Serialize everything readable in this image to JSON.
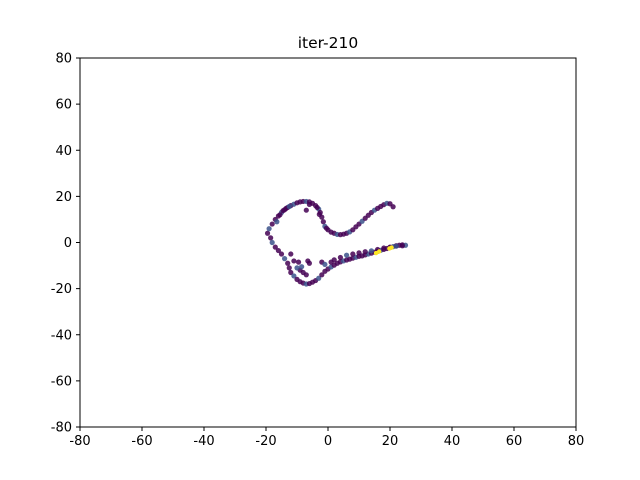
{
  "chart_data": {
    "type": "scatter",
    "title": "iter-210",
    "xlabel": "",
    "ylabel": "",
    "xlim": [
      -80,
      80
    ],
    "ylim": [
      -80,
      80
    ],
    "xticks": [
      -80,
      -60,
      -40,
      -20,
      0,
      20,
      40,
      60,
      80
    ],
    "yticks": [
      -80,
      -60,
      -40,
      -20,
      0,
      20,
      40,
      60,
      80
    ],
    "grid": false,
    "legend": "none",
    "colors": {
      "low": "#440154",
      "mid": "#3b528b",
      "high": "#fde725"
    },
    "series": [
      {
        "points": [
          [
            -19.5,
            4.0
          ],
          [
            -19.0,
            6.0
          ],
          [
            -18.0,
            8.0
          ],
          [
            -17.0,
            10.0
          ],
          [
            -16.0,
            11.5
          ],
          [
            -15.0,
            13.0
          ],
          [
            -14.0,
            14.2
          ],
          [
            -13.0,
            15.2
          ],
          [
            -12.0,
            16.0
          ],
          [
            -11.0,
            16.6
          ],
          [
            -10.0,
            17.2
          ],
          [
            -9.0,
            17.6
          ],
          [
            -8.0,
            17.8
          ],
          [
            -7.0,
            17.8
          ],
          [
            -6.0,
            17.6
          ],
          [
            -5.0,
            17.0
          ],
          [
            -4.0,
            16.0
          ],
          [
            -3.0,
            14.5
          ],
          [
            -2.5,
            13.0
          ],
          [
            -2.0,
            11.0
          ],
          [
            -1.5,
            9.0
          ],
          [
            -1.0,
            7.0
          ],
          [
            0.0,
            5.5
          ],
          [
            1.0,
            4.5
          ],
          [
            2.0,
            4.0
          ],
          [
            3.0,
            3.5
          ],
          [
            4.0,
            3.4
          ],
          [
            5.0,
            3.6
          ],
          [
            6.0,
            4.0
          ],
          [
            7.0,
            4.6
          ],
          [
            8.0,
            5.5
          ],
          [
            9.0,
            6.8
          ],
          [
            10.0,
            8.0
          ],
          [
            11.0,
            9.2
          ],
          [
            12.0,
            10.5
          ],
          [
            13.0,
            11.8
          ],
          [
            14.0,
            13.0
          ],
          [
            15.0,
            14.0
          ],
          [
            16.0,
            14.8
          ],
          [
            17.0,
            15.6
          ],
          [
            18.0,
            16.4
          ],
          [
            19.0,
            17.0
          ],
          [
            20.0,
            16.8
          ],
          [
            21.0,
            15.5
          ],
          [
            -18.5,
            2.0
          ],
          [
            -18.0,
            0.0
          ],
          [
            -17.0,
            -2.0
          ],
          [
            -16.0,
            -3.5
          ],
          [
            -15.0,
            -5.0
          ],
          [
            -14.0,
            -7.0
          ],
          [
            -13.0,
            -9.0
          ],
          [
            -12.5,
            -11.0
          ],
          [
            -12.0,
            -13.0
          ],
          [
            -11.0,
            -14.5
          ],
          [
            -10.0,
            -16.0
          ],
          [
            -9.0,
            -17.0
          ],
          [
            -8.0,
            -17.6
          ],
          [
            -7.0,
            -18.0
          ],
          [
            -6.0,
            -17.8
          ],
          [
            -5.0,
            -17.2
          ],
          [
            -4.0,
            -16.5
          ],
          [
            -3.0,
            -15.5
          ],
          [
            -2.0,
            -14.0
          ],
          [
            -1.0,
            -12.5
          ],
          [
            0.0,
            -11.5
          ],
          [
            1.0,
            -10.6
          ],
          [
            2.0,
            -9.8
          ],
          [
            3.0,
            -9.0
          ],
          [
            4.0,
            -8.4
          ],
          [
            5.0,
            -8.0
          ],
          [
            6.0,
            -7.6
          ],
          [
            7.0,
            -7.2
          ],
          [
            8.0,
            -6.8
          ],
          [
            9.0,
            -6.4
          ],
          [
            10.0,
            -6.0
          ],
          [
            11.0,
            -5.8
          ],
          [
            12.0,
            -5.4
          ],
          [
            13.0,
            -5.0
          ],
          [
            14.0,
            -4.6
          ],
          [
            15.0,
            -4.2
          ],
          [
            16.0,
            -3.8
          ],
          [
            17.0,
            -3.4
          ],
          [
            18.0,
            -3.0
          ],
          [
            19.0,
            -2.6
          ],
          [
            20.0,
            -2.2
          ],
          [
            21.0,
            -1.8
          ],
          [
            22.0,
            -1.4
          ],
          [
            23.0,
            -1.2
          ],
          [
            24.0,
            -1.0
          ],
          [
            25.0,
            -1.2
          ],
          [
            -9.0,
            -12.0
          ],
          [
            -8.0,
            -13.0
          ],
          [
            -7.0,
            -14.0
          ],
          [
            -10.0,
            -11.0
          ],
          [
            -11.0,
            -8.0
          ],
          [
            -12.0,
            -5.0
          ],
          [
            -9.5,
            -8.5
          ],
          [
            -8.5,
            -10.5
          ],
          [
            -6.0,
            -9.0
          ],
          [
            -6.5,
            -8.0
          ],
          [
            -2.0,
            -8.5
          ],
          [
            -1.0,
            -9.5
          ],
          [
            1.0,
            -8.5
          ],
          [
            2.0,
            -7.5
          ],
          [
            4.0,
            -6.5
          ],
          [
            6.0,
            -5.5
          ],
          [
            8.0,
            -5.0
          ],
          [
            10.0,
            -4.5
          ],
          [
            12.0,
            -4.0
          ],
          [
            14.0,
            -3.6
          ],
          [
            16.0,
            -3.0
          ],
          [
            18.0,
            -2.4
          ],
          [
            20.0,
            -2.0
          ],
          [
            22.0,
            -1.6
          ],
          [
            24.0,
            -1.4
          ],
          [
            -7.0,
            14.0
          ],
          [
            -6.0,
            16.5
          ],
          [
            -16.5,
            9.0
          ],
          [
            -15.5,
            12.0
          ],
          [
            -14.5,
            13.8
          ],
          [
            -13.5,
            14.8
          ],
          [
            -12.5,
            15.6
          ],
          [
            -3.5,
            15.2
          ],
          [
            -2.8,
            12.2
          ],
          [
            -0.5,
            6.2
          ]
        ]
      }
    ],
    "highlight_points": [
      [
        15.5,
        -4.6
      ],
      [
        19.8,
        -2.6
      ],
      [
        16.5,
        -3.9
      ],
      [
        20.5,
        -2.2
      ]
    ]
  }
}
